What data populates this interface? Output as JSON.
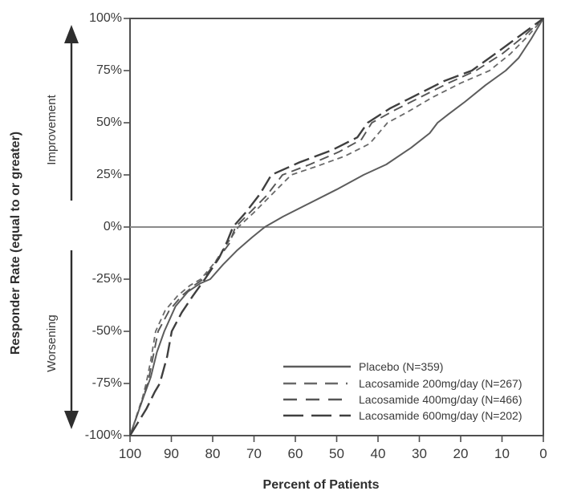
{
  "chart_data": {
    "type": "line",
    "title": "",
    "xlabel": "Percent of Patients",
    "ylabel": "Responder Rate (equal to or greater)",
    "annotations": {
      "up": "Improvement",
      "down": "Worsening"
    },
    "xlim": [
      100,
      0
    ],
    "ylim": [
      -100,
      100
    ],
    "x_axis_reversed": true,
    "grid": false,
    "zero_reference_line": true,
    "legend_position": "inside-bottom-right",
    "x_ticks": [
      "100",
      "90",
      "80",
      "70",
      "60",
      "50",
      "40",
      "30",
      "20",
      "10",
      "0"
    ],
    "x_tick_values": [
      100,
      90,
      80,
      70,
      60,
      50,
      40,
      30,
      20,
      10,
      0
    ],
    "y_ticks": [
      "100%",
      "75%",
      "50%",
      "25%",
      "0%",
      "-25%",
      "-50%",
      "-75%",
      "-100%"
    ],
    "y_tick_values": [
      100,
      75,
      50,
      25,
      0,
      -25,
      -50,
      -75,
      -100
    ],
    "colors": {
      "axis": "#4f4f4f",
      "zero_line": "#8a8a8a",
      "text": "#3a3a3a",
      "placebo_line": "#5c5c5c",
      "laco200_line": "#696969",
      "laco400_line": "#565656",
      "laco600_line": "#3f3f3f"
    },
    "series": [
      {
        "name": "Placebo (N=359)",
        "line_style": "solid",
        "points": [
          [
            100,
            -100
          ],
          [
            97,
            -83
          ],
          [
            95,
            -72
          ],
          [
            93.5,
            -60
          ],
          [
            91.7,
            -50
          ],
          [
            89,
            -38
          ],
          [
            86,
            -31
          ],
          [
            83,
            -27
          ],
          [
            80.6,
            -25
          ],
          [
            77.5,
            -18
          ],
          [
            74,
            -11
          ],
          [
            70.5,
            -5
          ],
          [
            67.4,
            0
          ],
          [
            63,
            5
          ],
          [
            57,
            11
          ],
          [
            50,
            18
          ],
          [
            43.5,
            25
          ],
          [
            38,
            30
          ],
          [
            32,
            38
          ],
          [
            27.5,
            45
          ],
          [
            25.6,
            50
          ],
          [
            23,
            54
          ],
          [
            19,
            60
          ],
          [
            14,
            68
          ],
          [
            9.1,
            75
          ],
          [
            6,
            81
          ],
          [
            3,
            90
          ],
          [
            0,
            100
          ]
        ]
      },
      {
        "name": "Lacosamide 200mg/day (N=267)",
        "line_style": "dash-short-dot",
        "points": [
          [
            100,
            -100
          ],
          [
            97,
            -82
          ],
          [
            96.1,
            -75
          ],
          [
            95,
            -64
          ],
          [
            93.8,
            -50
          ],
          [
            91.5,
            -40
          ],
          [
            88.5,
            -33
          ],
          [
            85.5,
            -28
          ],
          [
            82.9,
            -25
          ],
          [
            79.5,
            -17
          ],
          [
            76.5,
            -8
          ],
          [
            73.8,
            0
          ],
          [
            70,
            7
          ],
          [
            66,
            15
          ],
          [
            61,
            25
          ],
          [
            55,
            29
          ],
          [
            48,
            34
          ],
          [
            42,
            40
          ],
          [
            37.7,
            50
          ],
          [
            33,
            55
          ],
          [
            27,
            62
          ],
          [
            20,
            69
          ],
          [
            13,
            75
          ],
          [
            8,
            83
          ],
          [
            4,
            91
          ],
          [
            0,
            100
          ]
        ]
      },
      {
        "name": "Lacosamide 400mg/day (N=466)",
        "line_style": "dash-medium",
        "points": [
          [
            100,
            -100
          ],
          [
            97.2,
            -84
          ],
          [
            95.7,
            -75
          ],
          [
            94.5,
            -63
          ],
          [
            93.2,
            -50
          ],
          [
            90.5,
            -40
          ],
          [
            87.5,
            -33
          ],
          [
            84.5,
            -28
          ],
          [
            82.3,
            -25
          ],
          [
            79,
            -16
          ],
          [
            76,
            -8
          ],
          [
            74.5,
            0
          ],
          [
            71,
            7
          ],
          [
            67,
            15
          ],
          [
            63.1,
            25
          ],
          [
            56.5,
            30
          ],
          [
            49.5,
            36
          ],
          [
            44,
            42
          ],
          [
            41.5,
            50
          ],
          [
            36,
            56
          ],
          [
            30,
            62
          ],
          [
            23,
            69
          ],
          [
            16.3,
            75
          ],
          [
            10,
            83
          ],
          [
            5,
            91
          ],
          [
            0,
            100
          ]
        ]
      },
      {
        "name": "Lacosamide 600mg/day (N=202)",
        "line_style": "dash-long",
        "points": [
          [
            100,
            -100
          ],
          [
            96,
            -87
          ],
          [
            94,
            -79
          ],
          [
            92.8,
            -75
          ],
          [
            91,
            -62
          ],
          [
            89.9,
            -50
          ],
          [
            87.5,
            -41
          ],
          [
            84.8,
            -33
          ],
          [
            81.9,
            -25
          ],
          [
            78.5,
            -15
          ],
          [
            76.5,
            -7
          ],
          [
            75.1,
            0
          ],
          [
            72,
            7
          ],
          [
            68.5,
            16
          ],
          [
            65.8,
            25
          ],
          [
            59,
            31
          ],
          [
            51,
            37
          ],
          [
            45,
            43
          ],
          [
            42.5,
            50
          ],
          [
            37,
            57
          ],
          [
            31,
            63
          ],
          [
            24,
            70
          ],
          [
            17.3,
            75
          ],
          [
            11,
            84
          ],
          [
            5.5,
            92
          ],
          [
            0,
            100
          ]
        ]
      }
    ]
  }
}
